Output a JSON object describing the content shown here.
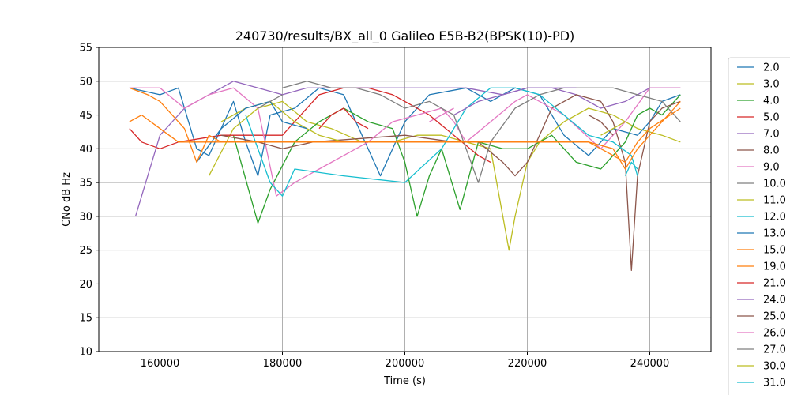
{
  "chart_data": {
    "type": "line",
    "title": "240730/results/BX_all_0 Galileo E5B-B2(BPSK(10)-PD)",
    "xlabel": "Time (s)",
    "ylabel": "CNo dB Hz",
    "xlim": [
      150000,
      250000
    ],
    "ylim": [
      10,
      55
    ],
    "xticks": [
      160000,
      180000,
      200000,
      220000,
      240000
    ],
    "yticks": [
      10,
      15,
      20,
      25,
      30,
      35,
      40,
      45,
      50,
      55
    ],
    "grid": true,
    "legend_position": "right-outside",
    "series": [
      {
        "name": "2.0",
        "color": "#1f77b4",
        "values": [
          [
            155000,
            49
          ],
          [
            160000,
            48
          ],
          [
            163000,
            49
          ],
          [
            166000,
            40
          ],
          [
            168000,
            39
          ],
          [
            172000,
            47
          ],
          [
            174000,
            41
          ],
          [
            176000,
            36
          ],
          [
            178000,
            45
          ],
          [
            182000,
            46
          ],
          [
            186000,
            49
          ],
          [
            190000,
            48
          ],
          [
            196000,
            36
          ],
          [
            200000,
            44
          ],
          [
            204000,
            48
          ],
          [
            210000,
            49
          ],
          [
            214000,
            47
          ],
          [
            218000,
            49
          ],
          [
            222000,
            48
          ],
          [
            226000,
            42
          ],
          [
            230000,
            39
          ],
          [
            234000,
            43
          ],
          [
            238000,
            42
          ],
          [
            240000,
            44
          ],
          [
            242000,
            47
          ],
          [
            245000,
            48
          ]
        ]
      },
      {
        "name": "3.0",
        "color": "#bcbd22",
        "values": [
          [
            168000,
            36
          ],
          [
            172000,
            43
          ],
          [
            176000,
            46
          ],
          [
            180000,
            47
          ],
          [
            184000,
            44
          ],
          [
            188000,
            43
          ],
          [
            193000,
            41
          ],
          [
            198000,
            41
          ],
          [
            202000,
            42
          ],
          [
            206000,
            42
          ],
          [
            210000,
            41
          ],
          [
            214000,
            40
          ],
          [
            217000,
            25
          ],
          [
            218000,
            30
          ],
          [
            220000,
            38
          ],
          [
            222000,
            41
          ],
          [
            226000,
            44
          ],
          [
            230000,
            46
          ],
          [
            234000,
            45
          ],
          [
            238000,
            43
          ],
          [
            242000,
            42
          ],
          [
            245000,
            41
          ]
        ]
      },
      {
        "name": "4.0",
        "color": "#2ca02c",
        "values": [
          [
            172000,
            42
          ],
          [
            176000,
            29
          ],
          [
            178000,
            34
          ],
          [
            182000,
            41
          ],
          [
            186000,
            44
          ],
          [
            190000,
            46
          ],
          [
            194000,
            44
          ],
          [
            198000,
            43
          ],
          [
            200000,
            38
          ],
          [
            202000,
            30
          ],
          [
            204000,
            36
          ],
          [
            206000,
            40
          ],
          [
            209000,
            31
          ],
          [
            212000,
            41
          ],
          [
            216000,
            40
          ],
          [
            220000,
            40
          ],
          [
            224000,
            42
          ],
          [
            228000,
            38
          ],
          [
            232000,
            37
          ],
          [
            236000,
            41
          ],
          [
            238000,
            45
          ],
          [
            240000,
            46
          ],
          [
            242000,
            45
          ],
          [
            245000,
            48
          ]
        ]
      },
      {
        "name": "5.0",
        "color": "#d62728",
        "values": [
          [
            155000,
            43
          ],
          [
            157000,
            41
          ],
          [
            160000,
            40
          ],
          [
            163000,
            41
          ],
          [
            170000,
            42
          ],
          [
            180000,
            42
          ],
          [
            186000,
            48
          ],
          [
            190000,
            49
          ],
          [
            194000,
            49
          ],
          [
            198000,
            48
          ],
          [
            200000,
            47
          ],
          [
            204000,
            45
          ],
          [
            208000,
            42
          ],
          [
            212000,
            39
          ],
          [
            214000,
            38
          ]
        ]
      },
      {
        "name": "7.0",
        "color": "#9467bd",
        "values": [
          [
            156000,
            30
          ],
          [
            158000,
            36
          ],
          [
            160000,
            42
          ],
          [
            164000,
            46
          ],
          [
            168000,
            48
          ],
          [
            172000,
            50
          ],
          [
            176000,
            49
          ],
          [
            180000,
            48
          ],
          [
            184000,
            49
          ],
          [
            190000,
            49
          ],
          [
            196000,
            49
          ],
          [
            200000,
            49
          ],
          [
            210000,
            49
          ],
          [
            216000,
            48
          ],
          [
            220000,
            49
          ],
          [
            224000,
            49
          ],
          [
            228000,
            48
          ],
          [
            232000,
            46
          ],
          [
            236000,
            47
          ],
          [
            240000,
            49
          ],
          [
            245000,
            49
          ]
        ]
      },
      {
        "name": "8.0",
        "color": "#8c564b",
        "values": [
          [
            170000,
            42
          ],
          [
            176000,
            41
          ],
          [
            180000,
            40
          ],
          [
            185000,
            41
          ],
          [
            200000,
            42
          ],
          [
            208000,
            41
          ],
          [
            212000,
            41
          ],
          [
            216000,
            38
          ],
          [
            218000,
            36
          ],
          [
            220000,
            38
          ],
          [
            224000,
            46
          ],
          [
            228000,
            48
          ],
          [
            232000,
            47
          ],
          [
            234000,
            44
          ],
          [
            236000,
            38
          ],
          [
            237000,
            22
          ],
          [
            238000,
            36
          ],
          [
            240000,
            44
          ],
          [
            242000,
            46
          ],
          [
            245000,
            47
          ]
        ]
      },
      {
        "name": "9.0",
        "color": "#e377c2",
        "values": [
          [
            155000,
            49
          ],
          [
            160000,
            49
          ],
          [
            164000,
            46
          ],
          [
            168000,
            48
          ],
          [
            172000,
            49
          ],
          [
            176000,
            46
          ],
          [
            179000,
            33
          ],
          [
            182000,
            35
          ],
          [
            186000,
            37
          ],
          [
            190000,
            39
          ],
          [
            194000,
            41
          ],
          [
            198000,
            44
          ],
          [
            202000,
            45
          ],
          [
            206000,
            46
          ],
          [
            208000,
            44
          ],
          [
            210000,
            41
          ],
          [
            214000,
            44
          ],
          [
            218000,
            47
          ],
          [
            220000,
            48
          ],
          [
            226000,
            45
          ],
          [
            232000,
            40
          ],
          [
            236000,
            44
          ],
          [
            240000,
            49
          ],
          [
            245000,
            49
          ]
        ]
      },
      {
        "name": "10.0",
        "color": "#7f7f7f",
        "values": [
          [
            180000,
            49
          ],
          [
            184000,
            50
          ],
          [
            188000,
            49
          ],
          [
            192000,
            49
          ],
          [
            196000,
            48
          ],
          [
            200000,
            46
          ],
          [
            204000,
            47
          ],
          [
            208000,
            45
          ],
          [
            210000,
            40
          ],
          [
            212000,
            35
          ],
          [
            214000,
            41
          ],
          [
            218000,
            46
          ],
          [
            222000,
            48
          ],
          [
            226000,
            49
          ],
          [
            230000,
            49
          ],
          [
            234000,
            49
          ],
          [
            238000,
            48
          ],
          [
            242000,
            47
          ],
          [
            245000,
            44
          ]
        ]
      },
      {
        "name": "11.0",
        "color": "#bcbd22",
        "values": [
          [
            170000,
            44
          ],
          [
            174000,
            46
          ],
          [
            178000,
            47
          ],
          [
            182000,
            44
          ],
          [
            186000,
            42
          ],
          [
            190000,
            41
          ]
        ]
      },
      {
        "name": "12.0",
        "color": "#17becf",
        "values": [
          [
            174000,
            45
          ],
          [
            178000,
            35
          ],
          [
            180000,
            33
          ],
          [
            182000,
            37
          ],
          [
            190000,
            36
          ],
          [
            200000,
            35
          ],
          [
            206000,
            40
          ],
          [
            210000,
            46
          ],
          [
            214000,
            49
          ],
          [
            218000,
            49
          ],
          [
            222000,
            48
          ],
          [
            226000,
            45
          ],
          [
            230000,
            42
          ],
          [
            234000,
            41
          ],
          [
            237000,
            39
          ],
          [
            238000,
            36
          ]
        ]
      },
      {
        "name": "13.0",
        "color": "#1f77b4",
        "values": [
          [
            166000,
            38
          ],
          [
            170000,
            43
          ],
          [
            174000,
            46
          ],
          [
            178000,
            47
          ],
          [
            180000,
            44
          ],
          [
            184000,
            43
          ]
        ]
      },
      {
        "name": "15.0",
        "color": "#ff7f0e",
        "values": [
          [
            155000,
            49
          ],
          [
            158000,
            48
          ],
          [
            160000,
            47
          ],
          [
            164000,
            43
          ],
          [
            166000,
            38
          ],
          [
            168000,
            42
          ],
          [
            170000,
            41
          ],
          [
            200000,
            41
          ],
          [
            230000,
            41
          ],
          [
            234000,
            40
          ],
          [
            236000,
            37
          ],
          [
            238000,
            40
          ],
          [
            240000,
            42
          ],
          [
            242000,
            44
          ],
          [
            244000,
            46
          ],
          [
            245000,
            47
          ]
        ]
      },
      {
        "name": "19.0",
        "color": "#ff7f0e",
        "values": [
          [
            155000,
            44
          ],
          [
            157000,
            45
          ],
          [
            160000,
            43
          ],
          [
            163000,
            41
          ],
          [
            166000,
            41
          ],
          [
            170000,
            41
          ],
          [
            180000,
            41
          ],
          [
            190000,
            41
          ],
          [
            200000,
            41
          ],
          [
            210000,
            41
          ],
          [
            220000,
            41
          ],
          [
            230000,
            41
          ],
          [
            236000,
            38
          ],
          [
            238000,
            41
          ],
          [
            240000,
            43
          ],
          [
            245000,
            46
          ]
        ]
      },
      {
        "name": "21.0",
        "color": "#d62728",
        "values": [
          [
            186000,
            43
          ],
          [
            188000,
            45
          ],
          [
            190000,
            46
          ],
          [
            192000,
            44
          ],
          [
            194000,
            43
          ]
        ]
      },
      {
        "name": "24.0",
        "color": "#9467bd",
        "values": [
          [
            208000,
            45
          ],
          [
            212000,
            47
          ],
          [
            216000,
            48
          ],
          [
            220000,
            49
          ],
          [
            224000,
            49
          ],
          [
            228000,
            49
          ]
        ]
      },
      {
        "name": "25.0",
        "color": "#8c564b",
        "values": [
          [
            230000,
            45
          ],
          [
            232000,
            44
          ],
          [
            234000,
            42
          ]
        ]
      },
      {
        "name": "26.0",
        "color": "#e377c2",
        "values": [
          [
            204000,
            44
          ],
          [
            206000,
            45
          ],
          [
            208000,
            46
          ]
        ]
      },
      {
        "name": "27.0",
        "color": "#7f7f7f",
        "values": [
          [
            176000,
            46
          ],
          [
            178000,
            47
          ],
          [
            180000,
            48
          ]
        ]
      },
      {
        "name": "30.0",
        "color": "#bcbd22",
        "values": [
          [
            232000,
            42
          ],
          [
            234000,
            43
          ],
          [
            236000,
            44
          ]
        ]
      },
      {
        "name": "31.0",
        "color": "#17becf",
        "values": [
          [
            236000,
            36
          ],
          [
            237000,
            38
          ],
          [
            238000,
            37
          ]
        ]
      }
    ]
  }
}
